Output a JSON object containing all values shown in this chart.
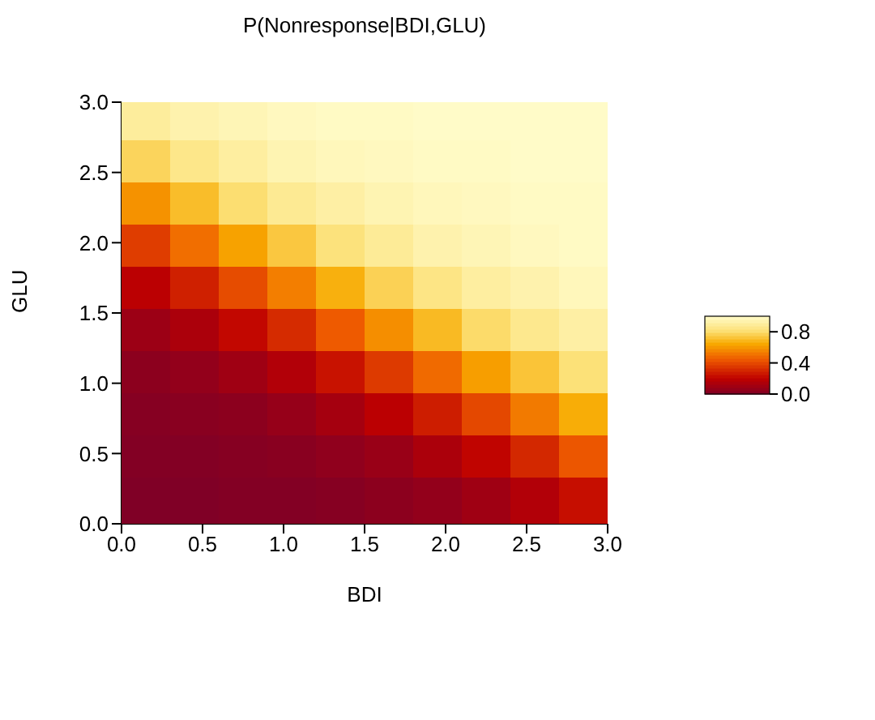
{
  "chart_data": {
    "type": "heatmap",
    "title": "P(Nonresponse|BDI,GLU)",
    "xlabel": "BDI",
    "ylabel": "GLU",
    "x": [
      0.15,
      0.45,
      0.75,
      1.05,
      1.35,
      1.65,
      1.95,
      2.25,
      2.55,
      2.85
    ],
    "xlim": [
      0,
      3
    ],
    "ylim": [
      0,
      3
    ],
    "xticks": [
      {
        "value": 0,
        "label": "0.0"
      },
      {
        "value": 0.5,
        "label": "0.5"
      },
      {
        "value": 1,
        "label": "1.0"
      },
      {
        "value": 1.5,
        "label": "1.5"
      },
      {
        "value": 2,
        "label": "2.0"
      },
      {
        "value": 2.5,
        "label": "2.5"
      },
      {
        "value": 3,
        "label": "3.0"
      }
    ],
    "yticks": [
      {
        "value": 0,
        "label": "0.0"
      },
      {
        "value": 0.5,
        "label": "0.5"
      },
      {
        "value": 1,
        "label": "1.0"
      },
      {
        "value": 1.5,
        "label": "1.5"
      },
      {
        "value": 2,
        "label": "2.0"
      },
      {
        "value": 2.5,
        "label": "2.5"
      },
      {
        "value": 3,
        "label": "3.0"
      }
    ],
    "clim": [
      0,
      1
    ],
    "cticks": [
      {
        "value": 0,
        "label": "0.0"
      },
      {
        "value": 0.4,
        "label": "0.4"
      },
      {
        "value": 0.8,
        "label": "0.8"
      }
    ],
    "cells": [
      [
        0.9,
        0.94,
        0.96,
        0.98,
        0.99,
        0.99,
        1.0,
        1.0,
        1.0,
        1.0
      ],
      [
        0.78,
        0.86,
        0.91,
        0.95,
        0.97,
        0.98,
        0.99,
        0.99,
        1.0,
        1.0
      ],
      [
        0.59,
        0.71,
        0.81,
        0.88,
        0.92,
        0.95,
        0.97,
        0.98,
        0.99,
        0.99
      ],
      [
        0.37,
        0.5,
        0.63,
        0.74,
        0.83,
        0.89,
        0.94,
        0.96,
        0.98,
        0.99
      ],
      [
        0.19,
        0.29,
        0.41,
        0.54,
        0.67,
        0.77,
        0.85,
        0.91,
        0.94,
        0.97
      ],
      [
        0.09,
        0.14,
        0.22,
        0.32,
        0.45,
        0.58,
        0.7,
        0.8,
        0.87,
        0.92
      ],
      [
        0.04,
        0.06,
        0.1,
        0.16,
        0.25,
        0.36,
        0.49,
        0.62,
        0.73,
        0.82
      ],
      [
        0.02,
        0.03,
        0.04,
        0.07,
        0.12,
        0.19,
        0.28,
        0.4,
        0.53,
        0.66
      ],
      [
        0.01,
        0.01,
        0.02,
        0.03,
        0.05,
        0.08,
        0.14,
        0.21,
        0.31,
        0.44
      ],
      [
        0.0,
        0.0,
        0.01,
        0.01,
        0.02,
        0.04,
        0.06,
        0.1,
        0.16,
        0.24
      ]
    ]
  }
}
